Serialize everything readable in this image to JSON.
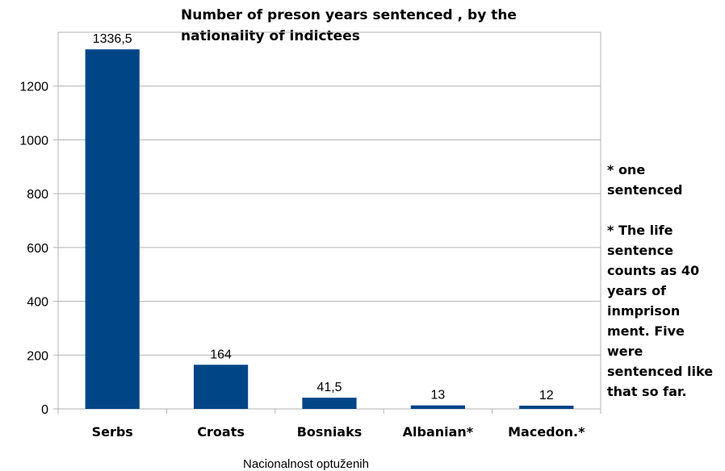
{
  "chart_data": {
    "type": "bar",
    "title": "Number of preson years sentenced , by the nationality  of indictees",
    "xlabel": "Nacionalnost optuženih",
    "ylabel": "",
    "categories": [
      "Serbs",
      "Croats",
      "Bosniaks",
      "Albanian*",
      "Macedon.*"
    ],
    "values": [
      1336.5,
      164,
      41.5,
      13,
      12
    ],
    "data_labels": [
      "1336,5",
      "164",
      "41,5",
      "13",
      "12"
    ],
    "ylim": [
      0,
      1400
    ],
    "yticks": [
      0,
      200,
      400,
      600,
      800,
      1000,
      1200
    ],
    "grid": true,
    "bar_color": "#004586"
  },
  "notes": {
    "one_sentenced": "* one sentenced",
    "life_sentence": "* The life sentence counts as 40 years of inmprison ment. Five were sentenced like that so far."
  }
}
